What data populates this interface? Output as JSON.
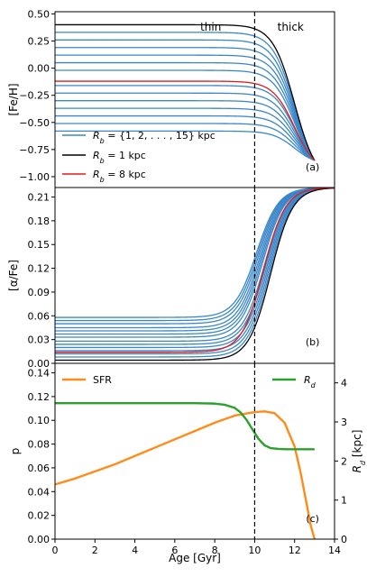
{
  "chart_data": [
    {
      "panel": "(a)",
      "type": "line",
      "xlim": [
        0,
        14
      ],
      "ylim": [
        -1.1,
        0.52
      ],
      "ylabel": "[Fe/H]",
      "yticks": [
        "0.50",
        "0.25",
        "0.00",
        "−0.25",
        "−0.50",
        "−0.75",
        "−1.00"
      ],
      "annotations": [
        "thin",
        "thick"
      ],
      "legend": {
        "placement": "lower-left",
        "entries": [
          {
            "label": "R_b = {1, 2, ..., 15} kpc",
            "color": "#3a86c8"
          },
          {
            "label": "R_b = 1 kpc",
            "color": "#000000"
          },
          {
            "label": "R_b = 8 kpc",
            "color": "#e41a1c"
          }
        ]
      },
      "curve_params": {
        "midpoint_age": 12.0,
        "width": 0.55,
        "end_age": 13.0,
        "end_value": -0.85,
        "plateau_min": -0.58,
        "plateau_max": 0.4
      },
      "series": [
        {
          "R_b": 1,
          "plateau": 0.4,
          "color": "#000000"
        },
        {
          "R_b": 2,
          "plateau": 0.33,
          "color": "#3a86c8"
        },
        {
          "R_b": 3,
          "plateau": 0.26,
          "color": "#3a86c8"
        },
        {
          "R_b": 4,
          "plateau": 0.19,
          "color": "#3a86c8"
        },
        {
          "R_b": 5,
          "plateau": 0.12,
          "color": "#3a86c8"
        },
        {
          "R_b": 6,
          "plateau": 0.05,
          "color": "#3a86c8"
        },
        {
          "R_b": 7,
          "plateau": -0.02,
          "color": "#3a86c8"
        },
        {
          "R_b": 8,
          "plateau": -0.12,
          "color": "#e41a1c"
        },
        {
          "R_b": 9,
          "plateau": -0.16,
          "color": "#3a86c8"
        },
        {
          "R_b": 10,
          "plateau": -0.23,
          "color": "#3a86c8"
        },
        {
          "R_b": 11,
          "plateau": -0.3,
          "color": "#3a86c8"
        },
        {
          "R_b": 12,
          "plateau": -0.37,
          "color": "#3a86c8"
        },
        {
          "R_b": 13,
          "plateau": -0.44,
          "color": "#3a86c8"
        },
        {
          "R_b": 14,
          "plateau": -0.51,
          "color": "#3a86c8"
        },
        {
          "R_b": 15,
          "plateau": -0.58,
          "color": "#3a86c8"
        }
      ]
    },
    {
      "panel": "(b)",
      "type": "line",
      "xlim": [
        0,
        14
      ],
      "ylim": [
        0,
        0.222
      ],
      "ylabel": "[α/Fe]",
      "yticks": [
        "0.21",
        "0.18",
        "0.15",
        "0.12",
        "0.09",
        "0.06",
        "0.03",
        "0.00"
      ],
      "curve_params": {
        "top_value": 0.222,
        "base_midpoint": 10.8,
        "midpoint_shift_per_kpc": -0.05,
        "width": 0.55
      },
      "series": [
        {
          "R_b": 1,
          "plateau": 0.004,
          "color": "#000000"
        },
        {
          "R_b": 2,
          "plateau": 0.008,
          "color": "#3a86c8"
        },
        {
          "R_b": 3,
          "plateau": 0.012,
          "color": "#3a86c8"
        },
        {
          "R_b": 4,
          "plateau": 0.016,
          "color": "#3a86c8"
        },
        {
          "R_b": 5,
          "plateau": 0.02,
          "color": "#3a86c8"
        },
        {
          "R_b": 6,
          "plateau": 0.024,
          "color": "#3a86c8"
        },
        {
          "R_b": 7,
          "plateau": 0.028,
          "color": "#3a86c8"
        },
        {
          "R_b": 8,
          "plateau": 0.014,
          "color": "#e41a1c"
        },
        {
          "R_b": 9,
          "plateau": 0.033,
          "color": "#3a86c8"
        },
        {
          "R_b": 10,
          "plateau": 0.037,
          "color": "#3a86c8"
        },
        {
          "R_b": 11,
          "plateau": 0.041,
          "color": "#3a86c8"
        },
        {
          "R_b": 12,
          "plateau": 0.045,
          "color": "#3a86c8"
        },
        {
          "R_b": 13,
          "plateau": 0.05,
          "color": "#3a86c8"
        },
        {
          "R_b": 14,
          "plateau": 0.054,
          "color": "#3a86c8"
        },
        {
          "R_b": 15,
          "plateau": 0.058,
          "color": "#3a86c8"
        }
      ]
    },
    {
      "panel": "(c)",
      "type": "line",
      "xlim": [
        0,
        14
      ],
      "xlabel": "Age [Gyr]",
      "xticks": [
        "0",
        "2",
        "4",
        "6",
        "8",
        "10",
        "12",
        "14"
      ],
      "ylim": [
        0,
        0.148
      ],
      "ylabel": "p",
      "yticks": [
        "0.00",
        "0.02",
        "0.04",
        "0.06",
        "0.08",
        "0.10",
        "0.12",
        "0.14"
      ],
      "y2lim": [
        0,
        4.5
      ],
      "y2label": "R_d [kpc]",
      "y2ticks": [
        "0",
        "1",
        "2",
        "3",
        "4"
      ],
      "legend": {
        "entries": [
          {
            "label": "SFR",
            "placement": "top-left",
            "color": "#ff8c1a"
          },
          {
            "label": "R_d",
            "placement": "top-right",
            "color": "#2ca02c"
          }
        ]
      },
      "series": [
        {
          "name": "SFR",
          "axis": "left",
          "color": "#ff8c1a",
          "x": [
            0,
            1,
            2,
            3,
            4,
            5,
            6,
            7,
            8,
            9,
            10,
            10.5,
            11,
            11.5,
            12,
            12.3,
            12.6,
            12.8,
            13.0
          ],
          "y": [
            0.046,
            0.051,
            0.057,
            0.063,
            0.07,
            0.077,
            0.084,
            0.091,
            0.098,
            0.104,
            0.107,
            0.1075,
            0.106,
            0.098,
            0.078,
            0.056,
            0.03,
            0.012,
            0.0
          ]
        },
        {
          "name": "R_d",
          "axis": "right",
          "color": "#2ca02c",
          "x": [
            0,
            2,
            4,
            6,
            7,
            8,
            8.5,
            9,
            9.3,
            9.6,
            9.9,
            10.2,
            10.5,
            10.8,
            11.2,
            11.6,
            12,
            13
          ],
          "y": [
            3.48,
            3.48,
            3.48,
            3.48,
            3.48,
            3.47,
            3.44,
            3.36,
            3.24,
            3.05,
            2.8,
            2.56,
            2.4,
            2.33,
            2.31,
            2.3,
            2.3,
            2.3
          ]
        }
      ],
      "annotations": [
        "(c)"
      ]
    }
  ],
  "vline": {
    "x": 10,
    "style": "dashed"
  }
}
